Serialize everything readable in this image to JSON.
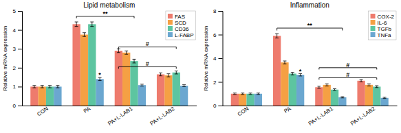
{
  "chart_data": [
    {
      "type": "bar",
      "title": "Lipid metabolism",
      "categories": [
        "CON",
        "PA",
        "PA+L-LAB1",
        "PA+L-LAB2"
      ],
      "series": [
        {
          "name": "FAS",
          "color": "#EE7B6D",
          "values": [
            1.0,
            4.3,
            2.9,
            1.65
          ],
          "errors": [
            0.06,
            0.12,
            0.1,
            0.08
          ]
        },
        {
          "name": "SCD",
          "color": "#F5A044",
          "values": [
            1.0,
            3.75,
            2.8,
            1.6
          ],
          "errors": [
            0.06,
            0.1,
            0.09,
            0.08
          ]
        },
        {
          "name": "CD36",
          "color": "#5DC5A0",
          "values": [
            1.0,
            4.3,
            2.35,
            1.75
          ],
          "errors": [
            0.06,
            0.12,
            0.1,
            0.08
          ]
        },
        {
          "name": "L-FABP",
          "color": "#6BA7D0",
          "values": [
            1.0,
            1.4,
            1.08,
            1.05
          ],
          "errors": [
            0.06,
            0.08,
            0.05,
            0.05
          ]
        }
      ],
      "ylabel": "Relative mRNA expression",
      "ylim": [
        0,
        5
      ],
      "yticks": [
        0,
        1,
        2,
        3,
        4,
        5
      ],
      "grid": false,
      "legend": "upper right",
      "annotations": [
        {
          "text": "**",
          "y": 4.72,
          "yline": 4.62,
          "from": {
            "category": "PA",
            "series": "FAS"
          },
          "to": {
            "category": "PA+L-LAB1",
            "series": "CD36"
          }
        },
        {
          "text": "*",
          "y": 1.52,
          "at": {
            "category": "PA",
            "series": "L-FABP"
          }
        },
        {
          "text": "#",
          "y": 3.1,
          "yline": 3.0,
          "from": {
            "category": "PA+L-LAB1",
            "series": "FAS"
          },
          "to": {
            "category": "PA+L-LAB2",
            "series": "CD36"
          }
        },
        {
          "text": "#",
          "y": 2.05,
          "yline": 1.95,
          "from": {
            "category": "PA+L-LAB1",
            "series": "FAS"
          },
          "to": {
            "category": "PA+L-LAB2",
            "series": "CD36"
          }
        }
      ]
    },
    {
      "type": "bar",
      "title": "Inflammation",
      "categories": [
        "CON",
        "PA",
        "PA+L-LAB1",
        "PA+L-LAB2"
      ],
      "series": [
        {
          "name": "COX-2",
          "color": "#EE7B6D",
          "values": [
            1.0,
            5.9,
            1.55,
            2.1
          ],
          "errors": [
            0.06,
            0.18,
            0.09,
            0.1
          ]
        },
        {
          "name": "IL-6",
          "color": "#F5A044",
          "values": [
            1.0,
            3.65,
            1.75,
            1.75
          ],
          "errors": [
            0.06,
            0.12,
            0.09,
            0.09
          ]
        },
        {
          "name": "TGFb",
          "color": "#5DC5A0",
          "values": [
            1.0,
            2.7,
            1.35,
            1.6
          ],
          "errors": [
            0.06,
            0.1,
            0.07,
            0.08
          ]
        },
        {
          "name": "TNFa",
          "color": "#6BA7D0",
          "values": [
            1.0,
            2.6,
            0.7,
            0.65
          ],
          "errors": [
            0.06,
            0.1,
            0.05,
            0.05
          ]
        }
      ],
      "ylabel": "Relative mRNA expression",
      "ylim": [
        0,
        8
      ],
      "yticks": [
        0,
        2,
        4,
        6,
        8
      ],
      "grid": false,
      "legend": "upper right",
      "annotations": [
        {
          "text": "**",
          "y": 6.55,
          "yline": 6.35,
          "from": {
            "category": "PA",
            "series": "COX-2"
          },
          "to": {
            "category": "PA+L-LAB1",
            "series": "TNFa"
          }
        },
        {
          "text": "*",
          "y": 2.75,
          "at": {
            "category": "PA",
            "series": "TNFa"
          }
        },
        {
          "text": "#",
          "y": 2.35,
          "yline": 2.2,
          "from": {
            "category": "PA+L-LAB1",
            "series": "COX-2"
          },
          "to": {
            "category": "PA+L-LAB2",
            "series": "TGFb"
          }
        },
        {
          "text": "#",
          "y": 3.2,
          "yline": 3.05,
          "from": {
            "category": "PA+L-LAB1",
            "series": "COX-2"
          },
          "to": {
            "category": "PA+L-LAB2",
            "series": "TGFb"
          }
        }
      ]
    }
  ]
}
